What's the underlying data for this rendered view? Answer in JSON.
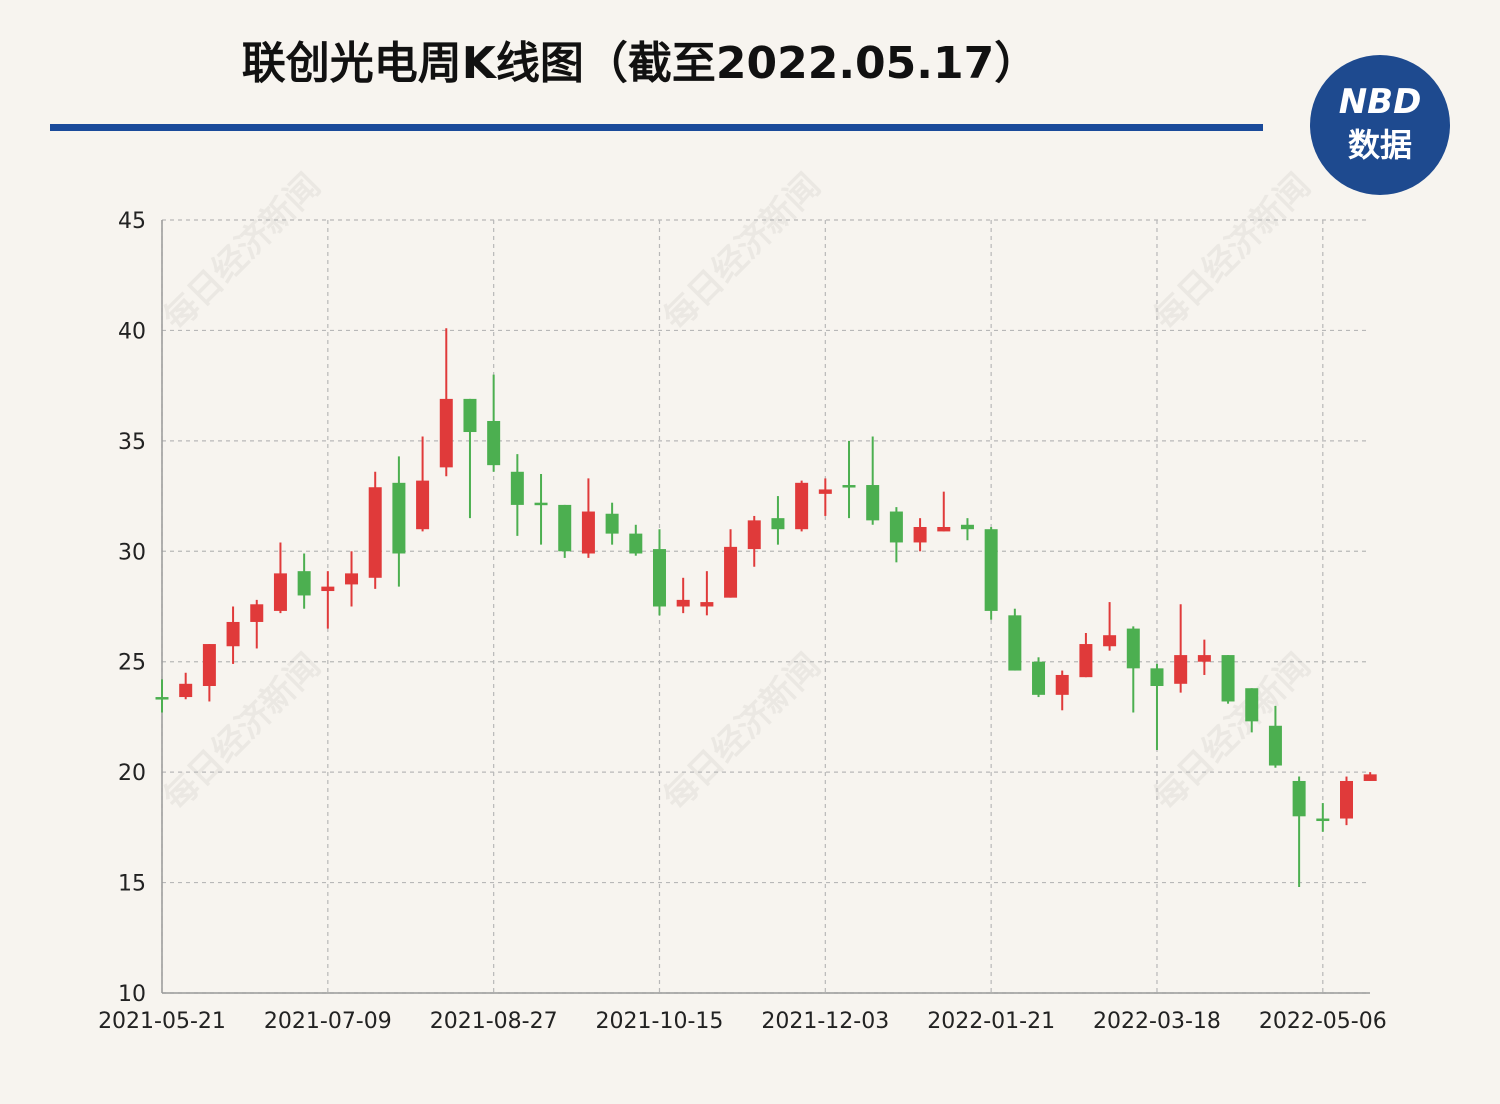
{
  "chart_data": {
    "type": "candlestick",
    "title": "联创光电周K线图（截至2022.05.17）",
    "logo": {
      "line1": "NBD",
      "line2": "数据"
    },
    "watermark": "每日经济新闻",
    "categories": [
      "2021-05-21",
      null,
      null,
      null,
      null,
      null,
      null,
      "2021-07-09",
      null,
      null,
      null,
      null,
      null,
      null,
      "2021-08-27",
      null,
      null,
      null,
      null,
      null,
      null,
      "2021-10-15",
      null,
      null,
      null,
      null,
      null,
      null,
      "2021-12-03",
      null,
      null,
      null,
      null,
      null,
      null,
      "2022-01-21",
      null,
      null,
      null,
      null,
      null,
      null,
      "2022-03-18",
      null,
      null,
      null,
      null,
      null,
      null,
      "2022-05-06",
      null,
      null
    ],
    "open": [
      23.4,
      23.4,
      23.9,
      25.7,
      26.8,
      27.3,
      29.1,
      28.2,
      28.5,
      28.8,
      33.1,
      31.0,
      33.8,
      36.9,
      35.9,
      33.6,
      32.2,
      32.1,
      29.9,
      31.7,
      30.8,
      30.1,
      27.5,
      27.5,
      27.9,
      30.1,
      31.5,
      31.0,
      32.6,
      33.0,
      33.0,
      31.8,
      30.4,
      30.9,
      31.2,
      31.0,
      27.1,
      25.0,
      23.5,
      24.3,
      25.7,
      26.5,
      24.7,
      24.0,
      25.0,
      25.3,
      23.8,
      22.1,
      19.6,
      17.9,
      17.9,
      19.6
    ],
    "high": [
      24.2,
      24.5,
      25.8,
      27.5,
      27.8,
      30.4,
      29.9,
      29.1,
      30.0,
      33.6,
      34.3,
      35.2,
      40.1,
      36.9,
      38.0,
      34.4,
      33.5,
      32.1,
      33.3,
      32.2,
      31.2,
      31.0,
      28.8,
      29.1,
      31.0,
      31.6,
      32.5,
      33.2,
      33.3,
      35.0,
      35.2,
      32.0,
      31.5,
      32.7,
      31.5,
      31.1,
      27.4,
      25.2,
      24.6,
      26.3,
      27.7,
      26.6,
      24.9,
      27.6,
      26.0,
      25.3,
      23.8,
      23.0,
      19.8,
      18.6,
      19.8,
      20.0
    ],
    "low": [
      22.7,
      23.3,
      23.2,
      24.9,
      25.6,
      27.2,
      27.4,
      26.5,
      27.5,
      28.3,
      28.4,
      30.9,
      33.4,
      31.5,
      33.6,
      30.7,
      30.3,
      29.7,
      29.7,
      30.3,
      29.8,
      27.1,
      27.2,
      27.1,
      27.9,
      29.3,
      30.3,
      30.9,
      31.6,
      31.5,
      31.2,
      29.5,
      30.0,
      30.9,
      30.5,
      26.9,
      24.6,
      23.4,
      22.8,
      24.3,
      25.5,
      22.7,
      21.0,
      23.6,
      24.4,
      23.1,
      21.8,
      20.2,
      14.8,
      17.3,
      17.6,
      19.6
    ],
    "close": [
      23.3,
      24.0,
      25.8,
      26.8,
      27.6,
      29.0,
      28.0,
      28.4,
      29.0,
      32.9,
      29.9,
      33.2,
      36.9,
      35.4,
      33.9,
      32.1,
      32.1,
      30.0,
      31.8,
      30.8,
      29.9,
      27.5,
      27.8,
      27.7,
      30.2,
      31.4,
      31.0,
      33.1,
      32.8,
      32.9,
      31.4,
      30.4,
      31.1,
      31.1,
      31.0,
      27.3,
      24.6,
      23.5,
      24.4,
      25.8,
      26.2,
      24.7,
      23.9,
      25.3,
      25.3,
      23.2,
      22.3,
      20.3,
      18.0,
      17.8,
      19.6,
      19.9
    ],
    "up_color": "#e03a3a",
    "down_color": "#4caf50",
    "ylim": [
      10,
      45
    ],
    "yticks": [
      10,
      15,
      20,
      25,
      30,
      35,
      40,
      45
    ],
    "grid": true
  }
}
